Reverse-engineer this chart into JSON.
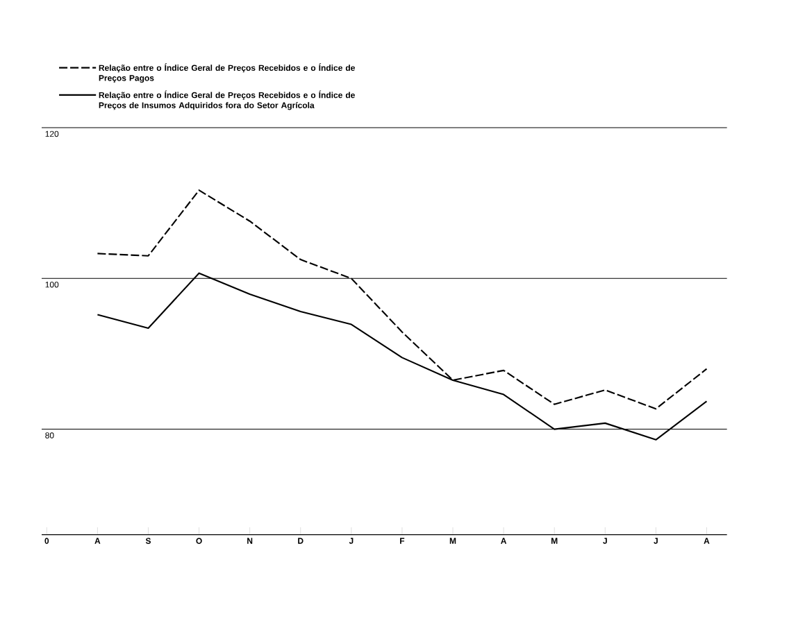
{
  "chart_data": {
    "type": "line",
    "categories": [
      "0",
      "A",
      "S",
      "O",
      "N",
      "D",
      "J",
      "F",
      "M",
      "A",
      "M",
      "J",
      "J",
      "A"
    ],
    "series": [
      {
        "name": "Relação entre o Índice Geral de Preços Recebidos e o Índice de Preços Pagos",
        "color": "#000000",
        "line_style": "dashed",
        "values": [
          null,
          103.3,
          103.0,
          111.7,
          107.6,
          102.5,
          100.0,
          92.9,
          86.5,
          87.8,
          83.3,
          85.2,
          82.7,
          88.0
        ]
      },
      {
        "name": "Relação entre o Índice Geral de Preços Recebidos e o Índice de Preços de Insumos Adquiridos fora do Setor Agrícola",
        "color": "#000000",
        "line_style": "solid",
        "values": [
          null,
          95.2,
          93.4,
          100.7,
          97.9,
          95.6,
          93.9,
          89.5,
          86.5,
          84.6,
          80.0,
          80.8,
          78.6,
          83.7
        ]
      }
    ],
    "ylim": [
      66,
      120
    ],
    "yticks": [
      80,
      100,
      120
    ],
    "grid": "y",
    "legend": "top",
    "marker": "none"
  }
}
